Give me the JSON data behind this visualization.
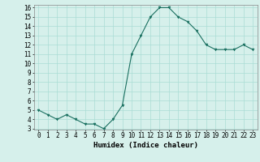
{
  "x": [
    0,
    1,
    2,
    3,
    4,
    5,
    6,
    7,
    8,
    9,
    10,
    11,
    12,
    13,
    14,
    15,
    16,
    17,
    18,
    19,
    20,
    21,
    22,
    23
  ],
  "y": [
    5.0,
    4.5,
    4.0,
    4.5,
    4.0,
    3.5,
    3.5,
    3.0,
    4.0,
    5.5,
    11.0,
    13.0,
    15.0,
    16.0,
    16.0,
    15.0,
    14.5,
    13.5,
    12.0,
    11.5,
    11.5,
    11.5,
    12.0,
    11.5
  ],
  "xlabel": "Humidex (Indice chaleur)",
  "ylim": [
    3,
    16
  ],
  "xlim": [
    -0.5,
    23.5
  ],
  "yticks": [
    3,
    4,
    5,
    6,
    7,
    8,
    9,
    10,
    11,
    12,
    13,
    14,
    15,
    16
  ],
  "xticks": [
    0,
    1,
    2,
    3,
    4,
    5,
    6,
    7,
    8,
    9,
    10,
    11,
    12,
    13,
    14,
    15,
    16,
    17,
    18,
    19,
    20,
    21,
    22,
    23
  ],
  "line_color": "#1a7060",
  "marker_color": "#1a7060",
  "bg_color": "#d6f0eb",
  "grid_color": "#aaddd5",
  "axis_label_fontsize": 6.5,
  "tick_fontsize": 5.5
}
